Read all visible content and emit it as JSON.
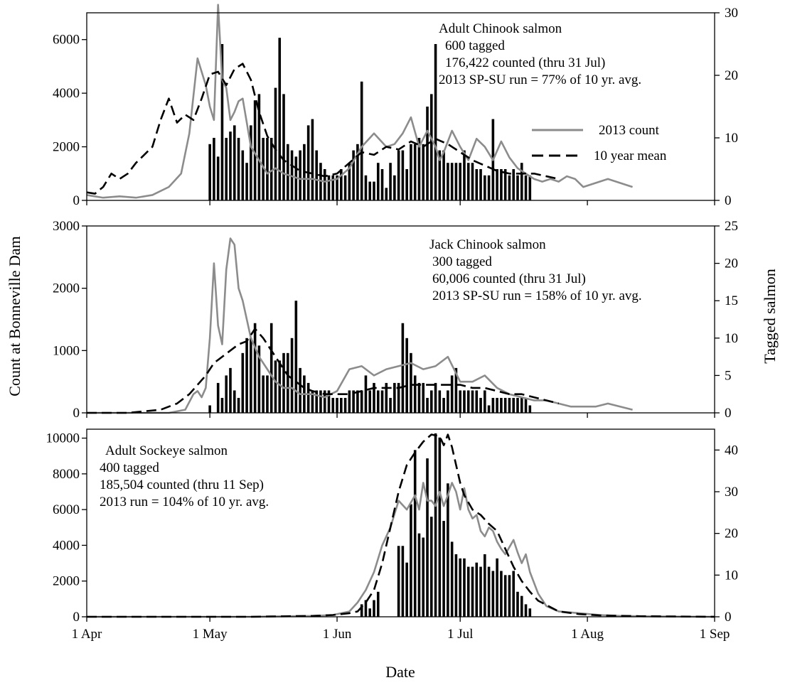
{
  "figure": {
    "xlabel": "Date",
    "ylabel_left": "Count at Bonneville Dam",
    "ylabel_right": "Tagged salmon",
    "x_ticks": [
      "1 Apr",
      "1 May",
      "1 Jun",
      "1 Jul",
      "1 Aug",
      "1 Sep"
    ]
  },
  "legend": {
    "count_label": "2013 count",
    "mean_label": "10 year mean"
  },
  "colors": {
    "count_line": "#8c8c8c",
    "mean_line": "#000000",
    "bars": "#000000"
  },
  "chart_data": [
    {
      "type": "bar+line",
      "panel": "Adult Chinook salmon",
      "title": "Adult Chinook salmon",
      "annotations": [
        "600 tagged",
        "176,422 counted (thru 31 Jul)",
        "2013 SP-SU run = 77% of 10 yr. avg."
      ],
      "x_unit": "day of year since 1 Apr (0 = 1 Apr)",
      "xlim": [
        0,
        153
      ],
      "ylim_left": [
        0,
        7000
      ],
      "ylim_right": [
        0,
        30
      ],
      "yticks_left": [
        0,
        2000,
        4000,
        6000
      ],
      "yticks_right": [
        0,
        10,
        20,
        30
      ],
      "legend_position": "right-middle",
      "series": [
        {
          "name": "2013 count",
          "style": "solid-gray",
          "x": [
            0,
            4,
            8,
            12,
            16,
            20,
            23,
            25,
            27,
            28,
            29,
            30,
            31,
            32,
            33,
            34,
            35,
            36,
            37,
            38,
            40,
            42,
            44,
            46,
            48,
            50,
            52,
            55,
            58,
            61,
            64,
            67,
            70,
            73,
            75,
            77,
            79,
            81,
            83,
            85,
            86,
            87,
            89,
            91,
            93,
            95,
            97,
            99,
            101,
            103,
            105,
            107,
            109,
            111,
            113,
            115,
            117,
            119,
            121,
            123,
            125,
            127,
            129,
            131,
            133
          ],
          "values": [
            200,
            100,
            150,
            100,
            200,
            500,
            1000,
            2500,
            5300,
            4800,
            4300,
            3500,
            3000,
            7300,
            4500,
            4200,
            3000,
            3300,
            3700,
            3800,
            2000,
            1500,
            1000,
            1200,
            1000,
            900,
            800,
            800,
            700,
            800,
            1200,
            2000,
            2500,
            2000,
            2100,
            2500,
            3100,
            2000,
            2600,
            2000,
            1500,
            1800,
            2600,
            2000,
            1500,
            2300,
            2000,
            1500,
            2200,
            1600,
            1200,
            1000,
            800,
            700,
            800,
            700,
            900,
            800,
            500,
            600,
            700,
            800,
            700,
            600,
            500
          ]
        },
        {
          "name": "10 year mean",
          "style": "dashed-black",
          "x": [
            0,
            2,
            4,
            6,
            8,
            10,
            12,
            14,
            16,
            18,
            20,
            22,
            24,
            26,
            28,
            30,
            32,
            34,
            36,
            38,
            40,
            42,
            44,
            46,
            48,
            50,
            52,
            55,
            58,
            61,
            64,
            67,
            70,
            73,
            76,
            79,
            82,
            85,
            88,
            91,
            94,
            97,
            100,
            103,
            106,
            109,
            112,
            115
          ],
          "values": [
            300,
            250,
            500,
            1000,
            800,
            1000,
            1400,
            1700,
            2000,
            3000,
            3800,
            2900,
            3200,
            3000,
            3800,
            4700,
            4800,
            4300,
            4900,
            5100,
            4500,
            3300,
            2400,
            1900,
            1500,
            1300,
            1100,
            1000,
            900,
            1000,
            1400,
            1800,
            1700,
            2000,
            1900,
            2200,
            2000,
            2300,
            2100,
            1800,
            1500,
            1300,
            1100,
            1000,
            1000,
            1000,
            900,
            800
          ]
        },
        {
          "name": "tagged",
          "type": "bar",
          "axis": "right",
          "x": [
            30,
            31,
            32,
            33,
            34,
            35,
            36,
            37,
            38,
            39,
            40,
            41,
            42,
            43,
            44,
            45,
            46,
            47,
            48,
            49,
            50,
            51,
            52,
            53,
            54,
            55,
            56,
            57,
            58,
            59,
            60,
            61,
            62,
            63,
            64,
            65,
            66,
            67,
            68,
            69,
            70,
            71,
            72,
            73,
            74,
            75,
            76,
            77,
            78,
            79,
            80,
            81,
            82,
            83,
            84,
            85,
            86,
            87,
            88,
            89,
            90,
            91,
            92,
            93,
            94,
            95,
            96,
            97,
            98,
            99,
            100,
            101,
            102,
            103,
            104,
            105,
            106,
            107,
            108
          ],
          "values": [
            9,
            10,
            7,
            25,
            10,
            11,
            12,
            10,
            8,
            6,
            12,
            16,
            17,
            10,
            10,
            10,
            18,
            26,
            17,
            9,
            8,
            7,
            8,
            9,
            12,
            13,
            8,
            6,
            5,
            4,
            4,
            4,
            5,
            4,
            6,
            8,
            9,
            19,
            4,
            3,
            3,
            6,
            5,
            2,
            6,
            4,
            8,
            8,
            5,
            9,
            9,
            10,
            9,
            15,
            17,
            25,
            8,
            8,
            6,
            6,
            6,
            6,
            8,
            6,
            6,
            5,
            5,
            4,
            4,
            13,
            5,
            5,
            5,
            4,
            5,
            4,
            6,
            4,
            4
          ]
        }
      ]
    },
    {
      "type": "bar+line",
      "panel": "Jack Chinook salmon",
      "title": "Jack Chinook salmon",
      "annotations": [
        "300 tagged",
        "60,006 counted (thru 31 Jul)",
        "2013 SP-SU run = 158% of 10 yr. avg."
      ],
      "x_unit": "day of year since 1 Apr (0 = 1 Apr)",
      "xlim": [
        0,
        153
      ],
      "ylim_left": [
        0,
        3000
      ],
      "ylim_right": [
        0,
        25
      ],
      "yticks_left": [
        0,
        1000,
        2000,
        3000
      ],
      "yticks_right": [
        0,
        5,
        10,
        15,
        20,
        25
      ],
      "series": [
        {
          "name": "2013 count",
          "style": "solid-gray",
          "x": [
            0,
            10,
            20,
            24,
            26,
            27,
            28,
            29,
            30,
            31,
            32,
            33,
            34,
            35,
            36,
            37,
            38,
            39,
            40,
            42,
            44,
            46,
            48,
            50,
            52,
            55,
            58,
            61,
            64,
            67,
            70,
            73,
            76,
            79,
            82,
            85,
            88,
            91,
            94,
            97,
            100,
            103,
            106,
            109,
            112,
            115,
            118,
            121,
            124,
            127,
            130,
            133
          ],
          "values": [
            0,
            0,
            0,
            50,
            300,
            350,
            250,
            400,
            1200,
            2400,
            1400,
            1100,
            2300,
            2800,
            2700,
            2000,
            1800,
            1500,
            1200,
            900,
            700,
            500,
            400,
            400,
            300,
            300,
            250,
            350,
            700,
            750,
            600,
            700,
            750,
            800,
            700,
            750,
            900,
            500,
            500,
            600,
            400,
            300,
            250,
            200,
            200,
            150,
            100,
            100,
            100,
            150,
            100,
            50
          ]
        },
        {
          "name": "10 year mean",
          "style": "dashed-black",
          "x": [
            0,
            10,
            18,
            22,
            25,
            27,
            29,
            31,
            33,
            35,
            37,
            39,
            41,
            43,
            45,
            47,
            49,
            51,
            53,
            55,
            58,
            61,
            64,
            67,
            70,
            73,
            76,
            79,
            82,
            85,
            88,
            91,
            94,
            97,
            100,
            103,
            106,
            109,
            112,
            115
          ],
          "values": [
            0,
            0,
            50,
            150,
            300,
            450,
            600,
            800,
            900,
            1000,
            1100,
            1150,
            1350,
            1200,
            1000,
            800,
            600,
            500,
            400,
            350,
            300,
            300,
            300,
            350,
            400,
            400,
            400,
            450,
            450,
            450,
            450,
            450,
            400,
            400,
            350,
            300,
            300,
            250,
            200,
            150
          ]
        },
        {
          "name": "tagged",
          "type": "bar",
          "axis": "right",
          "x": [
            30,
            32,
            33,
            34,
            35,
            36,
            37,
            38,
            39,
            40,
            41,
            42,
            43,
            44,
            45,
            46,
            47,
            48,
            49,
            50,
            51,
            52,
            53,
            54,
            55,
            56,
            57,
            58,
            59,
            60,
            61,
            62,
            63,
            64,
            65,
            66,
            67,
            68,
            69,
            70,
            71,
            72,
            73,
            74,
            75,
            76,
            77,
            78,
            79,
            80,
            81,
            82,
            83,
            84,
            85,
            86,
            87,
            88,
            89,
            90,
            91,
            92,
            93,
            94,
            95,
            96,
            97,
            98,
            99,
            100,
            101,
            102,
            103,
            104,
            105,
            106,
            107,
            108
          ],
          "values": [
            1,
            4,
            2,
            5,
            6,
            3,
            2,
            8,
            10,
            10,
            12,
            9,
            5,
            5,
            12,
            7,
            7,
            8,
            8,
            10,
            15,
            6,
            5,
            4,
            3,
            3,
            3,
            3,
            3,
            2,
            2,
            2,
            2,
            3,
            3,
            3,
            3,
            5,
            3,
            4,
            3,
            3,
            4,
            2,
            4,
            4,
            12,
            10,
            8,
            5,
            4,
            4,
            2,
            3,
            4,
            3,
            2,
            3,
            5,
            6,
            3,
            3,
            3,
            3,
            3,
            2,
            3,
            1,
            2,
            2,
            2,
            2,
            2,
            2,
            2,
            2,
            2,
            1
          ]
        }
      ]
    },
    {
      "type": "bar+line",
      "panel": "Adult Sockeye salmon",
      "title": "Adult Sockeye salmon",
      "annotations": [
        "400 tagged",
        "185,504 counted (thru 11 Sep)",
        "2013 run = 104% of 10 yr. avg."
      ],
      "x_unit": "day of year since 1 Apr (0 = 1 Apr)",
      "xlim": [
        0,
        153
      ],
      "ylim_left": [
        0,
        10500
      ],
      "ylim_right": [
        0,
        45
      ],
      "yticks_left": [
        0,
        2000,
        4000,
        6000,
        8000,
        10000
      ],
      "yticks_right": [
        0,
        10,
        20,
        30,
        40
      ],
      "series": [
        {
          "name": "2013 count",
          "style": "solid-gray",
          "x": [
            0,
            40,
            55,
            60,
            64,
            66,
            68,
            70,
            72,
            74,
            76,
            78,
            80,
            81,
            82,
            83,
            84,
            85,
            86,
            87,
            88,
            89,
            90,
            91,
            92,
            93,
            94,
            95,
            96,
            97,
            98,
            99,
            100,
            101,
            102,
            103,
            104,
            105,
            106,
            107,
            108,
            110,
            112,
            115,
            120,
            125,
            130,
            135,
            145,
            153
          ],
          "values": [
            0,
            0,
            50,
            100,
            300,
            800,
            1500,
            2500,
            4000,
            5000,
            6500,
            6000,
            6800,
            6000,
            7500,
            6500,
            6500,
            6200,
            7000,
            6200,
            6800,
            7500,
            7000,
            6000,
            7200,
            6000,
            5500,
            5700,
            4800,
            4500,
            5000,
            4800,
            4200,
            3800,
            3500,
            3900,
            4300,
            3600,
            3000,
            3500,
            2500,
            1300,
            600,
            300,
            200,
            100,
            50,
            30,
            10,
            0
          ]
        },
        {
          "name": "10 year mean",
          "style": "dashed-black",
          "x": [
            0,
            40,
            55,
            60,
            64,
            66,
            68,
            70,
            72,
            74,
            76,
            78,
            80,
            82,
            84,
            86,
            87,
            88,
            89,
            90,
            91,
            92,
            94,
            96,
            98,
            100,
            102,
            104,
            106,
            108,
            110,
            115,
            120,
            125,
            135,
            153
          ],
          "values": [
            0,
            0,
            50,
            100,
            200,
            300,
            800,
            1500,
            3000,
            5000,
            7000,
            8500,
            9200,
            9800,
            10200,
            10100,
            9600,
            10200,
            9500,
            8500,
            7500,
            6800,
            6000,
            5700,
            5200,
            4800,
            3800,
            2800,
            2000,
            1400,
            900,
            300,
            150,
            80,
            30,
            0
          ]
        },
        {
          "name": "tagged",
          "type": "bar",
          "axis": "right",
          "x": [
            67,
            68,
            69,
            70,
            71,
            76,
            77,
            78,
            79,
            80,
            81,
            82,
            83,
            84,
            85,
            86,
            87,
            88,
            89,
            90,
            91,
            92,
            93,
            94,
            95,
            96,
            97,
            98,
            99,
            100,
            101,
            102,
            103,
            104,
            105,
            106,
            107,
            108
          ],
          "values": [
            3,
            4,
            2,
            4,
            6,
            17,
            17,
            13,
            27,
            40,
            20,
            19,
            38,
            24,
            44,
            43,
            23,
            32,
            18,
            15,
            14,
            14,
            12,
            12,
            13,
            12,
            15,
            12,
            11,
            14,
            11,
            10,
            10,
            11,
            6,
            5,
            3,
            2
          ]
        }
      ]
    }
  ]
}
